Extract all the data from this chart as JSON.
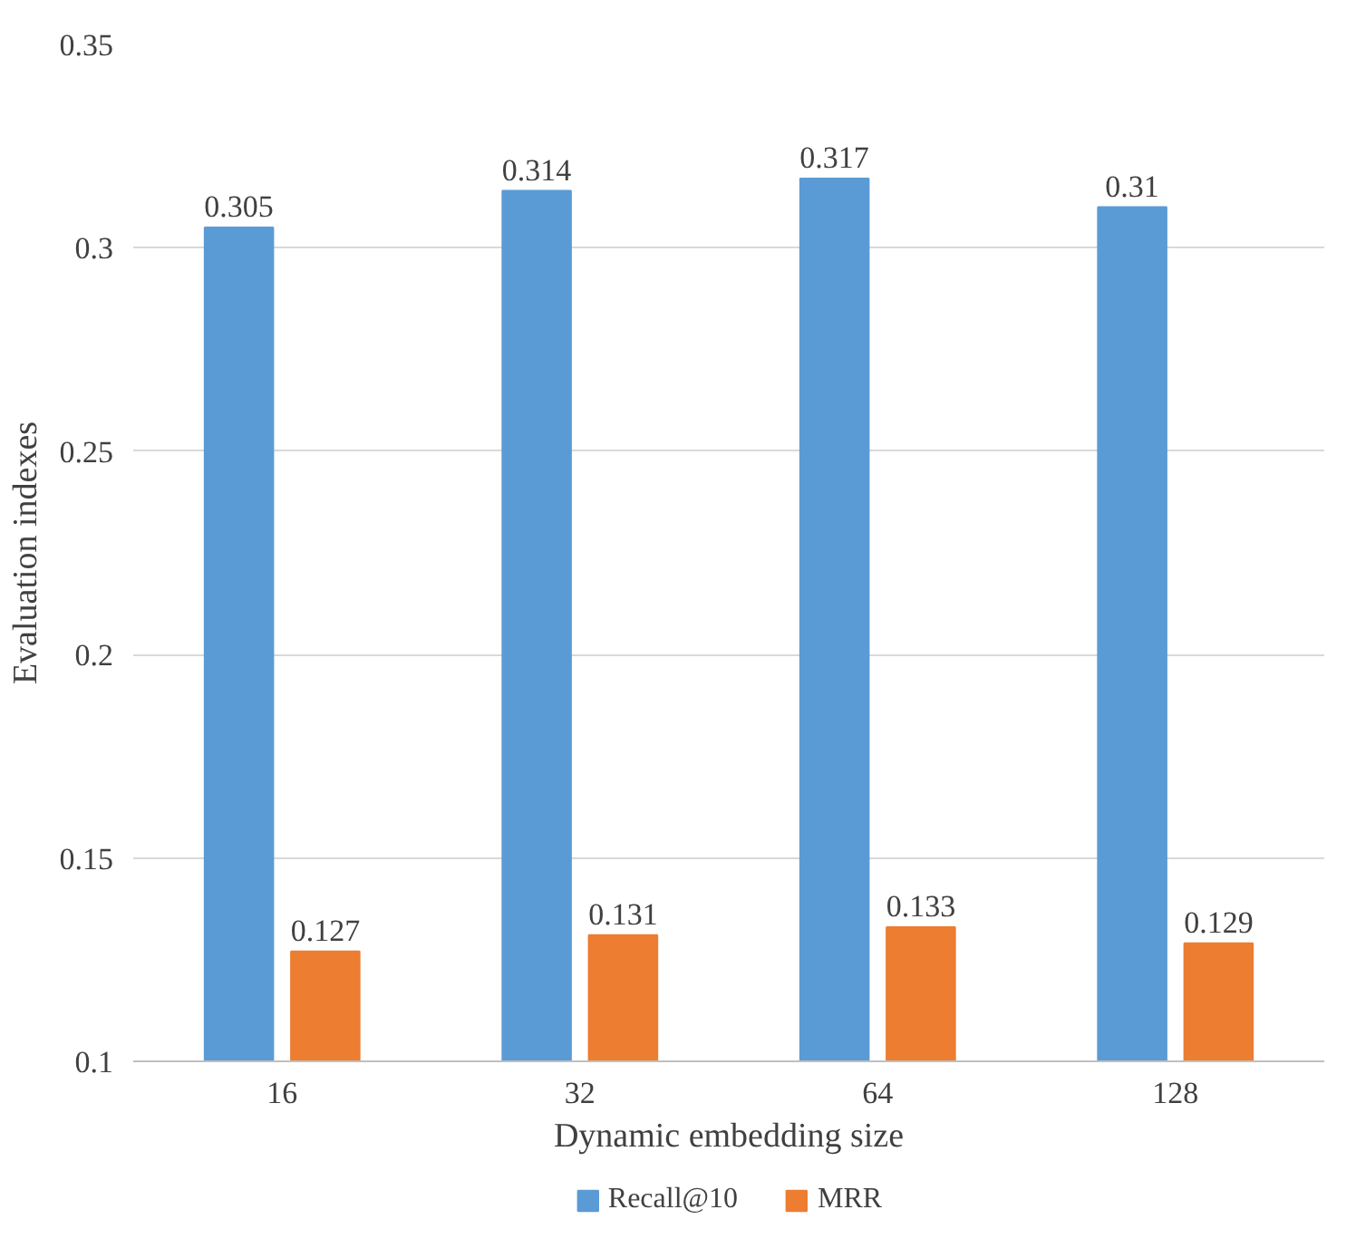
{
  "chart_data": {
    "type": "bar",
    "xlabel": "Dynamic embedding size",
    "ylabel": "Evaluation indexes",
    "categories": [
      "16",
      "32",
      "64",
      "128"
    ],
    "series": [
      {
        "name": "Recall@10",
        "color": "#5b9bd5",
        "values": [
          0.305,
          0.314,
          0.317,
          0.31
        ]
      },
      {
        "name": "MRR",
        "color": "#ed7d31",
        "values": [
          0.127,
          0.131,
          0.133,
          0.129
        ]
      }
    ],
    "ylim": [
      0.1,
      0.35
    ],
    "yticks": [
      0.1,
      0.15,
      0.2,
      0.25,
      0.3,
      0.35
    ],
    "grid": "y",
    "legend": "bottom",
    "data_labels": true
  }
}
